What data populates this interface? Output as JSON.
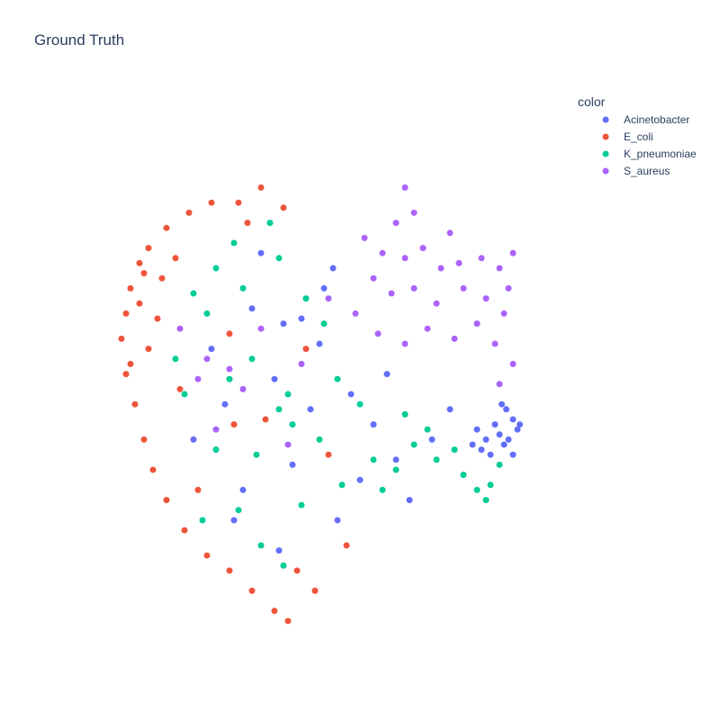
{
  "chart_data": {
    "type": "scatter",
    "title": "Ground Truth",
    "xlabel": "",
    "ylabel": "",
    "grid": false,
    "axes_visible": false,
    "xlim": [
      0,
      10
    ],
    "ylim": [
      0,
      10
    ],
    "legend": {
      "title": "color",
      "placement": "top-right",
      "entries": [
        "Acinetobacter",
        "E_coli",
        "K_pneumoniae",
        "S_aureus"
      ]
    },
    "series": [
      {
        "name": "Acinetobacter",
        "color": "#636efa",
        "points": [
          [
            9.3,
            3.8
          ],
          [
            9.1,
            3.6
          ],
          [
            9.2,
            4.0
          ],
          [
            8.9,
            3.7
          ],
          [
            9.0,
            3.5
          ],
          [
            9.35,
            3.9
          ],
          [
            8.8,
            3.9
          ],
          [
            9.05,
            4.2
          ],
          [
            8.6,
            3.6
          ],
          [
            8.7,
            3.3
          ],
          [
            8.4,
            3.8
          ],
          [
            8.5,
            3.4
          ],
          [
            9.2,
            3.3
          ],
          [
            8.3,
            3.5
          ],
          [
            8.95,
            4.3
          ],
          [
            3.6,
            7.3
          ],
          [
            4.5,
            6.0
          ],
          [
            2.8,
            4.3
          ],
          [
            5.3,
            2.0
          ],
          [
            6.1,
            3.9
          ],
          [
            4.0,
            1.4
          ],
          [
            4.9,
            5.5
          ],
          [
            3.2,
            2.6
          ],
          [
            6.6,
            3.2
          ],
          [
            2.5,
            5.4
          ],
          [
            5.8,
            2.8
          ],
          [
            4.3,
            3.1
          ],
          [
            3.9,
            4.8
          ],
          [
            5.2,
            7.0
          ],
          [
            6.4,
            4.9
          ],
          [
            2.1,
            3.6
          ],
          [
            3.4,
            6.2
          ],
          [
            4.7,
            4.2
          ],
          [
            5.6,
            4.5
          ],
          [
            3.0,
            2.0
          ],
          [
            6.9,
            2.4
          ],
          [
            7.4,
            3.6
          ],
          [
            7.8,
            4.2
          ],
          [
            4.1,
            5.9
          ],
          [
            5.0,
            6.6
          ]
        ]
      },
      {
        "name": "E_coli",
        "color": "#ef553b",
        "points": [
          [
            0.5,
            5.6
          ],
          [
            0.6,
            6.1
          ],
          [
            0.7,
            6.6
          ],
          [
            0.9,
            7.1
          ],
          [
            1.1,
            7.4
          ],
          [
            1.5,
            7.8
          ],
          [
            2.0,
            8.1
          ],
          [
            2.5,
            8.3
          ],
          [
            3.1,
            8.3
          ],
          [
            3.6,
            8.6
          ],
          [
            0.6,
            4.9
          ],
          [
            0.8,
            4.3
          ],
          [
            1.0,
            3.6
          ],
          [
            1.2,
            3.0
          ],
          [
            1.5,
            2.4
          ],
          [
            1.9,
            1.8
          ],
          [
            2.4,
            1.3
          ],
          [
            2.9,
            1.0
          ],
          [
            3.4,
            0.6
          ],
          [
            3.9,
            0.2
          ],
          [
            4.2,
            0.0
          ],
          [
            0.9,
            6.3
          ],
          [
            1.3,
            6.0
          ],
          [
            1.1,
            5.4
          ],
          [
            0.7,
            5.1
          ],
          [
            1.4,
            6.8
          ],
          [
            1.7,
            7.2
          ],
          [
            1.0,
            6.9
          ],
          [
            3.3,
            7.9
          ],
          [
            4.1,
            8.2
          ],
          [
            4.4,
            1.0
          ],
          [
            4.8,
            0.6
          ],
          [
            3.7,
            4.0
          ],
          [
            2.9,
            5.7
          ],
          [
            4.6,
            5.4
          ],
          [
            5.1,
            3.3
          ],
          [
            2.2,
            2.6
          ],
          [
            3.0,
            3.9
          ],
          [
            5.5,
            1.5
          ],
          [
            1.8,
            4.6
          ]
        ]
      },
      {
        "name": "K_pneumoniae",
        "color": "#00cc96",
        "points": [
          [
            4.2,
            4.5
          ],
          [
            4.0,
            4.2
          ],
          [
            4.3,
            3.9
          ],
          [
            2.1,
            6.5
          ],
          [
            2.4,
            6.1
          ],
          [
            1.7,
            5.2
          ],
          [
            1.9,
            4.5
          ],
          [
            2.6,
            3.4
          ],
          [
            3.1,
            2.2
          ],
          [
            3.6,
            1.5
          ],
          [
            4.5,
            2.3
          ],
          [
            4.9,
            3.6
          ],
          [
            5.3,
            4.8
          ],
          [
            5.8,
            4.3
          ],
          [
            6.1,
            3.2
          ],
          [
            6.6,
            3.0
          ],
          [
            7.0,
            3.5
          ],
          [
            7.5,
            3.2
          ],
          [
            8.1,
            2.9
          ],
          [
            8.6,
            2.4
          ],
          [
            8.7,
            2.7
          ],
          [
            8.9,
            3.1
          ],
          [
            8.4,
            2.6
          ],
          [
            7.9,
            3.4
          ],
          [
            3.0,
            7.5
          ],
          [
            3.8,
            7.9
          ],
          [
            4.0,
            7.2
          ],
          [
            2.6,
            7.0
          ],
          [
            3.4,
            5.2
          ],
          [
            4.6,
            6.4
          ],
          [
            5.0,
            5.9
          ],
          [
            2.9,
            4.8
          ],
          [
            3.5,
            3.3
          ],
          [
            5.4,
            2.7
          ],
          [
            6.3,
            2.6
          ],
          [
            2.3,
            2.0
          ],
          [
            4.1,
            1.1
          ],
          [
            3.2,
            6.6
          ],
          [
            6.8,
            4.1
          ],
          [
            7.3,
            3.8
          ]
        ]
      },
      {
        "name": "S_aureus",
        "color": "#ab63fa",
        "points": [
          [
            5.9,
            7.6
          ],
          [
            6.3,
            7.3
          ],
          [
            6.8,
            7.2
          ],
          [
            7.2,
            7.4
          ],
          [
            7.6,
            7.0
          ],
          [
            8.0,
            7.1
          ],
          [
            8.5,
            7.2
          ],
          [
            8.9,
            7.0
          ],
          [
            9.2,
            7.3
          ],
          [
            9.1,
            6.6
          ],
          [
            8.6,
            6.4
          ],
          [
            8.1,
            6.6
          ],
          [
            7.5,
            6.3
          ],
          [
            7.0,
            6.6
          ],
          [
            6.5,
            6.5
          ],
          [
            6.1,
            6.8
          ],
          [
            5.7,
            6.1
          ],
          [
            6.2,
            5.7
          ],
          [
            6.8,
            5.5
          ],
          [
            7.3,
            5.8
          ],
          [
            7.9,
            5.6
          ],
          [
            8.4,
            5.9
          ],
          [
            8.8,
            5.5
          ],
          [
            9.0,
            6.1
          ],
          [
            9.2,
            5.1
          ],
          [
            8.9,
            4.7
          ],
          [
            6.8,
            8.6
          ],
          [
            7.0,
            8.1
          ],
          [
            6.6,
            7.9
          ],
          [
            7.8,
            7.7
          ],
          [
            2.9,
            5.0
          ],
          [
            3.2,
            4.6
          ],
          [
            2.4,
            5.2
          ],
          [
            2.2,
            4.8
          ],
          [
            3.6,
            5.8
          ],
          [
            4.5,
            5.1
          ],
          [
            5.1,
            6.4
          ],
          [
            1.8,
            5.8
          ],
          [
            2.6,
            3.8
          ],
          [
            4.2,
            3.5
          ]
        ]
      }
    ]
  }
}
